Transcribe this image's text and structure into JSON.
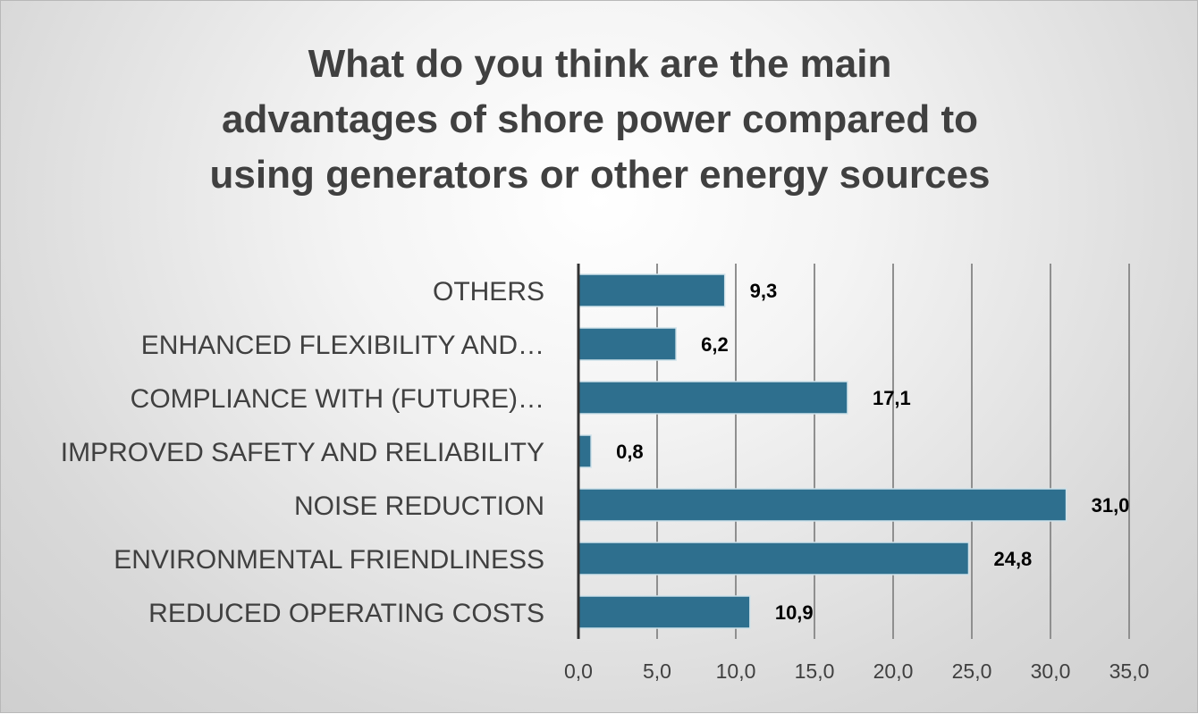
{
  "chart_data": {
    "type": "bar",
    "orientation": "horizontal",
    "title_lines": [
      "What do you think are the main",
      "advantages of shore power compared to",
      "using generators or other energy sources"
    ],
    "categories": [
      "OTHERS",
      "ENHANCED FLEXIBILITY AND…",
      "COMPLIANCE WITH (FUTURE)…",
      "IMPROVED SAFETY AND RELIABILITY",
      "NOISE REDUCTION",
      "ENVIRONMENTAL FRIENDLINESS",
      "REDUCED OPERATING COSTS"
    ],
    "values": [
      9.3,
      6.2,
      17.1,
      0.8,
      31.0,
      24.8,
      10.9
    ],
    "data_labels": [
      "9,3",
      "6,2",
      "17,1",
      "0,8",
      "31,0",
      "24,8",
      "10,9"
    ],
    "xlim": [
      0,
      35
    ],
    "x_ticks": [
      "0,0",
      "5,0",
      "10,0",
      "15,0",
      "20,0",
      "25,0",
      "30,0",
      "35,0"
    ],
    "grid": "vertical",
    "bar_color": "#2e6f8e",
    "label_color": "#404040",
    "data_label_color": "#000000"
  }
}
